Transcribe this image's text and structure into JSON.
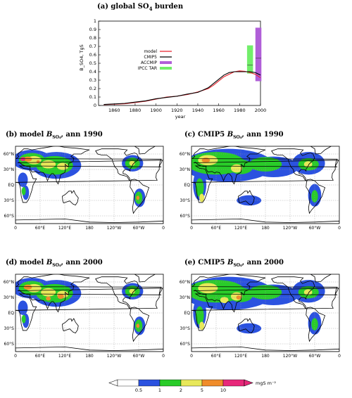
{
  "chart_data": [
    {
      "type": "line",
      "title": "(a) global SO₄ burden",
      "xlabel": "year",
      "ylabel": "B_SO4, TgS",
      "xlim": [
        1845,
        2000
      ],
      "ylim": [
        0,
        1
      ],
      "xticks": [
        1860,
        1880,
        1900,
        1920,
        1940,
        1960,
        1980,
        2000
      ],
      "yticks": [
        0,
        0.1,
        0.2,
        0.3,
        0.4,
        0.5,
        0.6,
        0.7,
        0.8,
        0.9,
        1
      ],
      "legend_position": "left",
      "series": [
        {
          "name": "model",
          "color": "#e8202a",
          "x": [
            1850,
            1860,
            1870,
            1880,
            1890,
            1900,
            1910,
            1920,
            1930,
            1940,
            1950,
            1955,
            1960,
            1965,
            1970,
            1975,
            1980,
            1985,
            1990,
            1995,
            2000
          ],
          "y": [
            0.01,
            0.015,
            0.02,
            0.035,
            0.05,
            0.075,
            0.1,
            0.11,
            0.13,
            0.16,
            0.2,
            0.24,
            0.29,
            0.34,
            0.37,
            0.4,
            0.41,
            0.405,
            0.39,
            0.37,
            0.33
          ]
        },
        {
          "name": "CMIP5",
          "color": "#000000",
          "x": [
            1850,
            1860,
            1870,
            1880,
            1890,
            1900,
            1910,
            1920,
            1930,
            1940,
            1950,
            1955,
            1960,
            1965,
            1970,
            1975,
            1980,
            1985,
            1990,
            1995,
            2000
          ],
          "y": [
            0.012,
            0.018,
            0.025,
            0.04,
            0.055,
            0.08,
            0.095,
            0.11,
            0.135,
            0.155,
            0.21,
            0.26,
            0.31,
            0.36,
            0.39,
            0.4,
            0.4,
            0.4,
            0.4,
            0.39,
            0.36
          ]
        }
      ],
      "ranges": [
        {
          "name": "ACCMIP",
          "color": "#b05fd8",
          "x": 1998,
          "low": 0.29,
          "high": 0.92,
          "mid": 0.56
        },
        {
          "name": "IPCC TAR",
          "color": "#72ee6a",
          "x": 1990,
          "low": 0.38,
          "high": 0.71,
          "mid": 0.48
        }
      ]
    },
    {
      "type": "heatmap",
      "panels": [
        {
          "id": "b",
          "title": "(b) model B_SO4, ann 1990"
        },
        {
          "id": "c",
          "title": "(c) CMIP5 B_SO4, ann 1990"
        },
        {
          "id": "d",
          "title": "(d) model B_SO4, ann 2000"
        },
        {
          "id": "e",
          "title": "(e) CMIP5 B_SO4, ann 2000"
        }
      ],
      "x_ticks": [
        "0",
        "60°E",
        "120°E",
        "180",
        "120°W",
        "60°W",
        "0"
      ],
      "y_ticks": [
        "60°N",
        "30°N",
        "EQ",
        "30°S",
        "60°S"
      ],
      "colorbar": {
        "labels": [
          "0.5",
          "1",
          "2",
          "5",
          "10"
        ],
        "unit": "mgS m⁻²",
        "colors": [
          "#ffffff",
          "#2b52e0",
          "#29cc29",
          "#e8e85a",
          "#f08c2a",
          "#e8287a"
        ]
      }
    }
  ]
}
